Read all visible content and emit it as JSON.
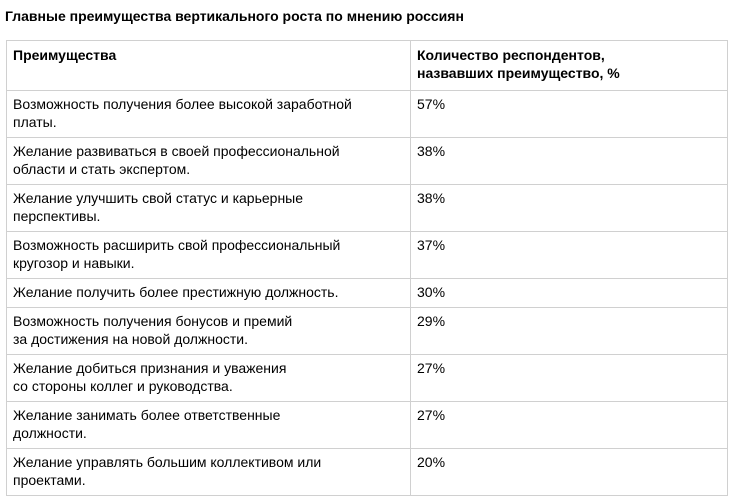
{
  "title": "Главные преимущества вертикального роста по мнению россиян",
  "table": {
    "headers": {
      "col1": "Преимущества",
      "col2": "Количество респондентов,\nназвавших преимущество, %"
    },
    "rows": [
      {
        "benefit": "Возможность получения более высокой заработной\nплаты.",
        "value": "57%"
      },
      {
        "benefit": "Желание развиваться в своей профессиональной\nобласти и стать экспертом.",
        "value": "38%"
      },
      {
        "benefit": "Желание улучшить свой статус и карьерные\nперспективы.",
        "value": "38%"
      },
      {
        "benefit": "Возможность расширить свой профессиональный\nкругозор и навыки.",
        "value": "37%"
      },
      {
        "benefit": "Желание получить более престижную должность.",
        "value": "30%"
      },
      {
        "benefit": "Возможность получения бонусов и премий\nза достижения на новой должности.",
        "value": "29%"
      },
      {
        "benefit": "Желание добиться признания и уважения\nсо стороны коллег и руководства.",
        "value": "27%"
      },
      {
        "benefit": "Желание занимать более ответственные\nдолжности.",
        "value": "27%"
      },
      {
        "benefit": "Желание управлять большим коллективом или\nпроектами.",
        "value": "20%"
      }
    ]
  }
}
